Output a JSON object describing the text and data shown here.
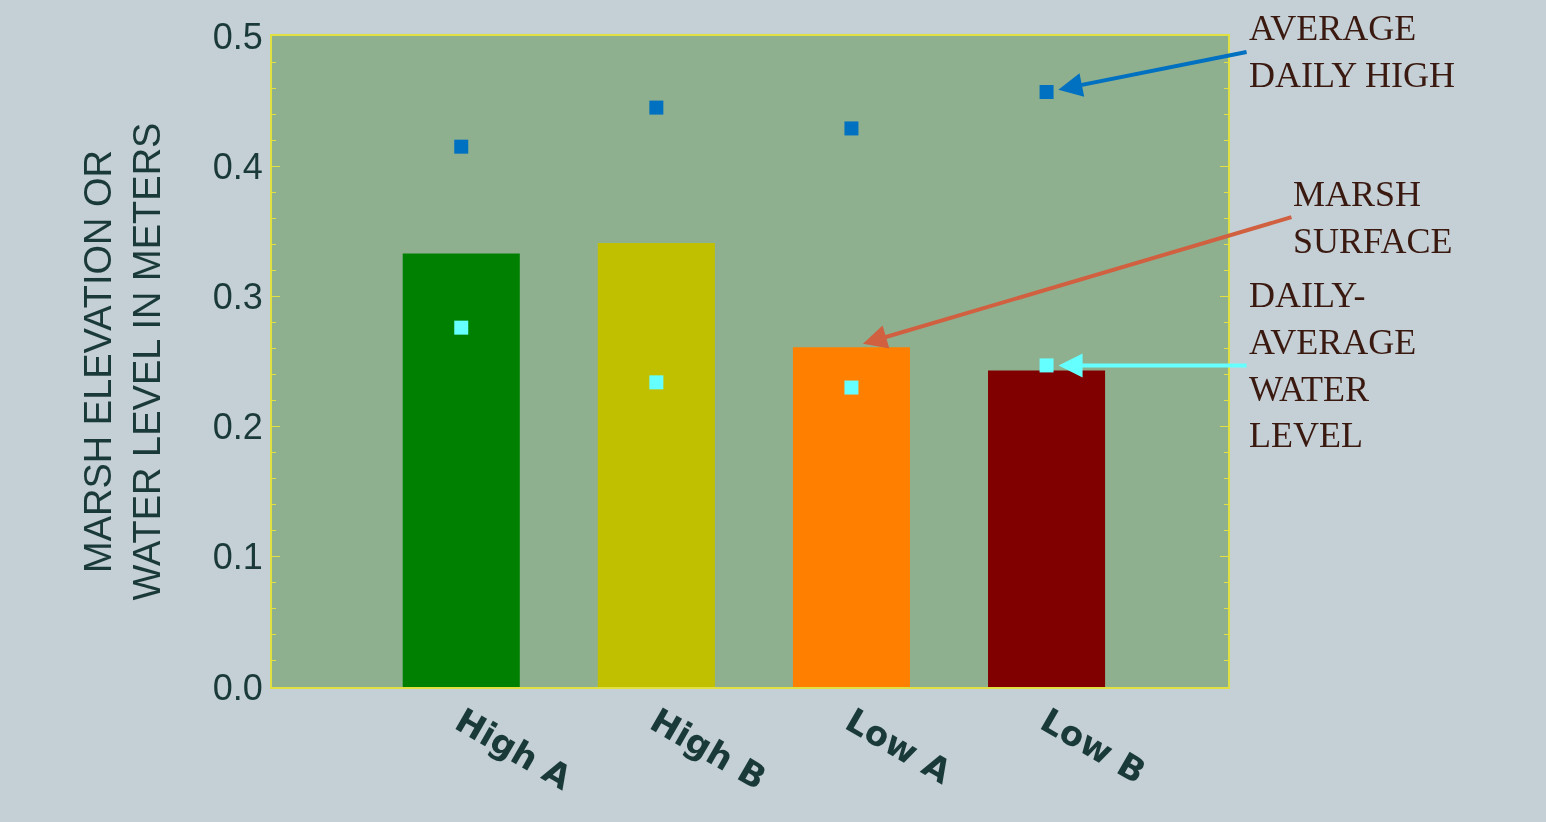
{
  "chart_data": {
    "type": "bar",
    "ylabel": "MARSH ELEVATION OR\nWATER LEVEL IN METERS",
    "categories": [
      "High A",
      "High B",
      "Low A",
      "Low B"
    ],
    "series": [
      {
        "colors": [
          "#008000",
          "#c0c000",
          "#ff8000",
          "#800000"
        ],
        "values": [
          0.333,
          0.341,
          0.261,
          0.243
        ]
      },
      {
        "type": "scatter",
        "color": "#0070c0",
        "values": [
          0.415,
          0.445,
          0.429,
          0.457
        ]
      },
      {
        "type": "scatter",
        "color": "#66ffff",
        "values": [
          0.276,
          0.234,
          0.23,
          0.247
        ]
      }
    ],
    "ylim": [
      0,
      0.5
    ],
    "yticks": [
      {
        "value": 0,
        "label": "0.0"
      },
      0.1,
      0.2,
      0.3,
      0.4,
      0.5
    ],
    "grid": false,
    "marker": "square",
    "annotations": [
      {
        "text": "AVERAGE\nDAILY HIGH",
        "x": "Low B",
        "y": 0.457
      },
      {
        "text": "MARSH\nSURFACE",
        "x": "Low A",
        "y": 0.261
      },
      {
        "text": "DAILY-\nAVERAGE\nWATER\nLEVEL",
        "x": "Low B",
        "y": 0.247
      }
    ]
  }
}
